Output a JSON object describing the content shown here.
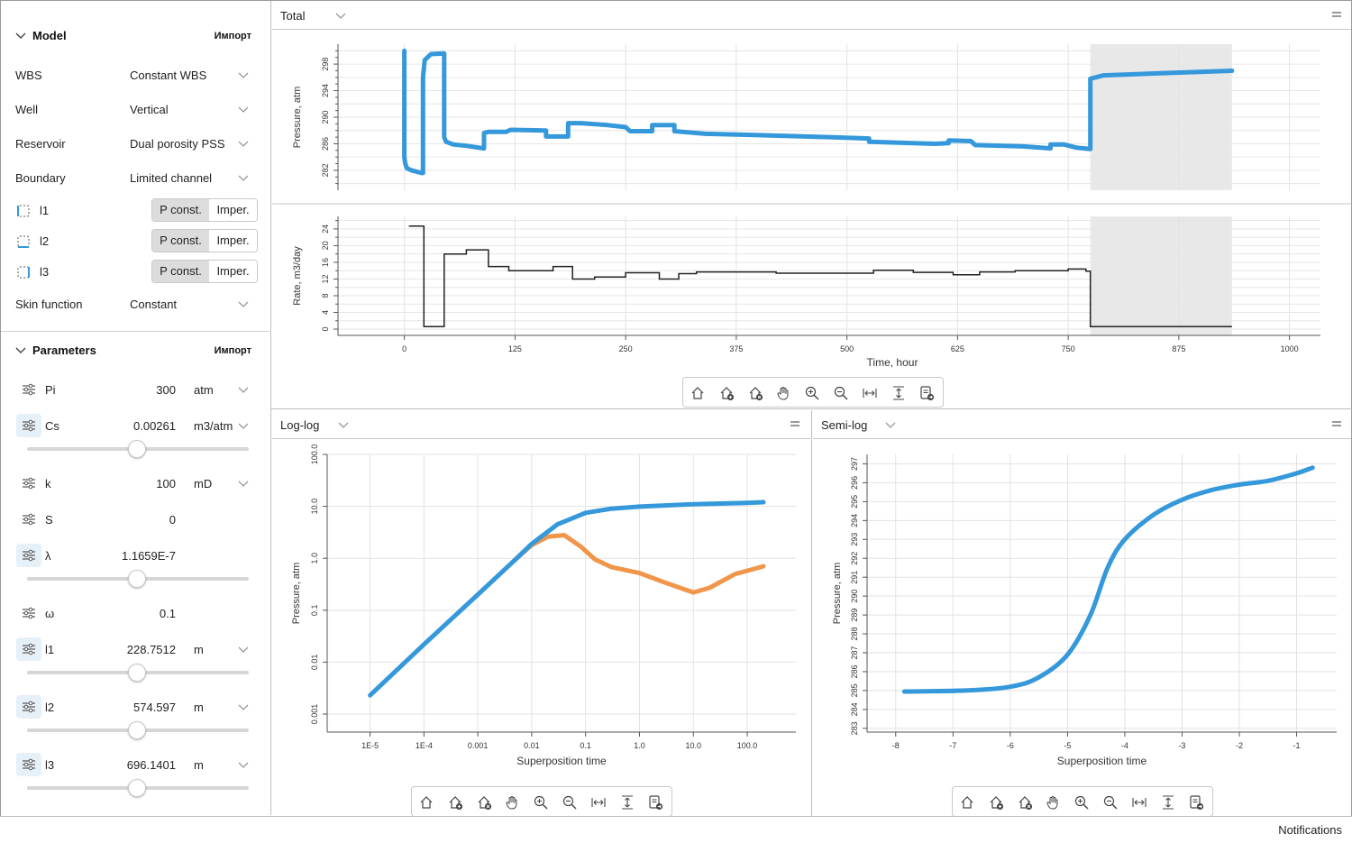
{
  "model": {
    "title": "Model",
    "import_label": "Импорт",
    "rows": [
      {
        "label": "WBS",
        "value": "Constant WBS"
      },
      {
        "label": "Well",
        "value": "Vertical"
      },
      {
        "label": "Reservoir",
        "value": "Dual porosity PSS"
      },
      {
        "label": "Boundary",
        "value": "Limited channel"
      }
    ],
    "boundaries": [
      {
        "label": "l1",
        "opt_a": "P const.",
        "opt_b": "Imper.",
        "selected": "P const."
      },
      {
        "label": "l2",
        "opt_a": "P const.",
        "opt_b": "Imper.",
        "selected": "P const."
      },
      {
        "label": "l3",
        "opt_a": "P const.",
        "opt_b": "Imper.",
        "selected": "P const."
      }
    ],
    "skin": {
      "label": "Skin function",
      "value": "Constant"
    }
  },
  "parameters": {
    "title": "Parameters",
    "import_label": "Импорт",
    "items": [
      {
        "label": "Pi",
        "value": "300",
        "unit": "atm",
        "dropdown": true,
        "slider": null
      },
      {
        "label": "Cs",
        "value": "0.00261",
        "unit": "m3/atm",
        "dropdown": true,
        "slider": 0.5
      },
      {
        "label": "k",
        "value": "100",
        "unit": "mD",
        "dropdown": true,
        "slider": null
      },
      {
        "label": "S",
        "value": "0",
        "unit": "",
        "dropdown": false,
        "slider": null
      },
      {
        "label": "λ",
        "value": "1.1659E-7",
        "unit": "",
        "dropdown": false,
        "slider": 0.5
      },
      {
        "label": "ω",
        "value": "0.1",
        "unit": "",
        "dropdown": false,
        "slider": null
      },
      {
        "label": "l1",
        "value": "228.7512",
        "unit": "m",
        "dropdown": true,
        "slider": 0.5
      },
      {
        "label": "l2",
        "value": "574.597",
        "unit": "m",
        "dropdown": true,
        "slider": 0.5
      },
      {
        "label": "l3",
        "value": "696.1401",
        "unit": "m",
        "dropdown": true,
        "slider": 0.5
      }
    ]
  },
  "panels": {
    "total": {
      "title": "Total"
    },
    "loglog": {
      "title": "Log-log"
    },
    "semilog": {
      "title": "Semi-log"
    }
  },
  "toolbar_icons": [
    "home-icon",
    "add-home-icon",
    "remove-home-icon",
    "pan-icon",
    "zoom-in-icon",
    "zoom-out-icon",
    "fit-horizontal-icon",
    "fit-vertical-icon",
    "export-icon"
  ],
  "status": {
    "notifications": "Notifications"
  },
  "colors": {
    "accent": "#3498db",
    "derivative": "#f0964a",
    "rate": "#222222",
    "shade": "#e8e8e8"
  },
  "chart_data": [
    {
      "id": "pressure",
      "type": "line",
      "ylabel": "Pressure, atm",
      "xlim": [
        -75,
        1035
      ],
      "ylim": [
        279,
        301
      ],
      "yticks": [
        282,
        286,
        290,
        294,
        298
      ],
      "shaded_range": [
        775,
        935
      ],
      "series": [
        {
          "values": [
            [
              0,
              300
            ],
            [
              0,
              284
            ],
            [
              1,
              283
            ],
            [
              3,
              282.3
            ],
            [
              8,
              282
            ],
            [
              20,
              281.6
            ],
            [
              21,
              281.6
            ],
            [
              21,
              296
            ],
            [
              23,
              298.6
            ],
            [
              30,
              299.5
            ],
            [
              45,
              299.6
            ],
            [
              45,
              287
            ],
            [
              47,
              286.3
            ],
            [
              55,
              285.9
            ],
            [
              70,
              285.7
            ],
            [
              90,
              285.3
            ],
            [
              90,
              287.6
            ],
            [
              95,
              287.8
            ],
            [
              115,
              287.8
            ],
            [
              120,
              288.1
            ],
            [
              160,
              288
            ],
            [
              160,
              287.1
            ],
            [
              185,
              287.1
            ],
            [
              185,
              289.1
            ],
            [
              200,
              289.1
            ],
            [
              230,
              288.8
            ],
            [
              250,
              288.5
            ],
            [
              255,
              287.9
            ],
            [
              280,
              287.9
            ],
            [
              280,
              288.8
            ],
            [
              305,
              288.8
            ],
            [
              305,
              287.9
            ],
            [
              340,
              287.5
            ],
            [
              400,
              287.3
            ],
            [
              480,
              287.0
            ],
            [
              525,
              286.8
            ],
            [
              525,
              286.3
            ],
            [
              600,
              286.0
            ],
            [
              615,
              286.1
            ],
            [
              615,
              286.5
            ],
            [
              640,
              286.4
            ],
            [
              645,
              285.8
            ],
            [
              700,
              285.6
            ],
            [
              720,
              285.4
            ],
            [
              730,
              285.3
            ],
            [
              730,
              285.9
            ],
            [
              745,
              285.9
            ],
            [
              760,
              285.4
            ],
            [
              775,
              285.2
            ],
            [
              775,
              295.8
            ],
            [
              790,
              296.3
            ],
            [
              850,
              296.6
            ],
            [
              935,
              297
            ]
          ]
        }
      ]
    },
    {
      "id": "rate",
      "type": "line",
      "xlabel": "Time, hour",
      "ylabel": "Rate, m3/day",
      "xlim": [
        -75,
        1035
      ],
      "ylim": [
        -1.5,
        27
      ],
      "xticks": [
        0,
        125,
        250,
        375,
        500,
        625,
        750,
        875,
        1000
      ],
      "yticks": [
        0,
        4,
        8,
        12,
        16,
        20,
        24
      ],
      "shaded_range": [
        775,
        935
      ],
      "series": [
        {
          "values": [
            [
              5,
              24.7
            ],
            [
              22,
              24.7
            ],
            [
              22,
              0.6
            ],
            [
              45,
              0.6
            ],
            [
              45,
              18
            ],
            [
              70,
              18
            ],
            [
              70,
              19
            ],
            [
              95,
              19
            ],
            [
              95,
              15
            ],
            [
              118,
              15
            ],
            [
              118,
              14
            ],
            [
              168,
              14
            ],
            [
              168,
              15
            ],
            [
              190,
              15
            ],
            [
              190,
              12
            ],
            [
              215,
              12
            ],
            [
              215,
              12.5
            ],
            [
              250,
              12.5
            ],
            [
              250,
              13.5
            ],
            [
              288,
              13.5
            ],
            [
              288,
              12
            ],
            [
              310,
              12
            ],
            [
              310,
              13.3
            ],
            [
              330,
              13.3
            ],
            [
              330,
              13.7
            ],
            [
              420,
              13.7
            ],
            [
              420,
              13.4
            ],
            [
              530,
              13.4
            ],
            [
              530,
              14.1
            ],
            [
              575,
              14.1
            ],
            [
              575,
              13.6
            ],
            [
              620,
              13.6
            ],
            [
              620,
              13
            ],
            [
              650,
              13
            ],
            [
              650,
              13.7
            ],
            [
              690,
              13.7
            ],
            [
              690,
              14
            ],
            [
              750,
              14
            ],
            [
              750,
              14.4
            ],
            [
              770,
              14.4
            ],
            [
              770,
              13.9
            ],
            [
              775,
              13.9
            ],
            [
              775,
              0.6
            ],
            [
              935,
              0.6
            ]
          ]
        }
      ]
    },
    {
      "id": "loglog",
      "type": "line",
      "xlabel": "Superposition time",
      "ylabel": "Pressure, atm",
      "xscale": "log",
      "yscale": "log",
      "xlim": [
        1.6e-06,
        800
      ],
      "ylim": [
        0.00045,
        100
      ],
      "xticks": [
        "1E-5",
        "1E-4",
        "0.001",
        "0.01",
        "0.1",
        "1.0",
        "10.0",
        "100.0"
      ],
      "yticks": [
        "0.001",
        "0.01",
        "0.1",
        "1.0",
        "10.0",
        "100.0"
      ],
      "series": [
        {
          "values": [
            [
              1e-05,
              0.0023
            ],
            [
              0.0001,
              0.022
            ],
            [
              0.001,
              0.2
            ],
            [
              0.005,
              0.95
            ],
            [
              0.01,
              1.9
            ],
            [
              0.03,
              4.5
            ],
            [
              0.1,
              7.5
            ],
            [
              0.3,
              9
            ],
            [
              1,
              9.9
            ],
            [
              10,
              11
            ],
            [
              100,
              11.7
            ],
            [
              200,
              12
            ]
          ]
        },
        {
          "values": [
            [
              0.005,
              0.95
            ],
            [
              0.01,
              1.8
            ],
            [
              0.02,
              2.6
            ],
            [
              0.04,
              2.8
            ],
            [
              0.08,
              1.7
            ],
            [
              0.15,
              0.95
            ],
            [
              0.3,
              0.68
            ],
            [
              1,
              0.52
            ],
            [
              3,
              0.34
            ],
            [
              10,
              0.22
            ],
            [
              20,
              0.27
            ],
            [
              60,
              0.5
            ],
            [
              200,
              0.7
            ]
          ]
        }
      ]
    },
    {
      "id": "semilog",
      "type": "line",
      "xlabel": "Superposition time",
      "ylabel": "Pressure, atm",
      "xlim": [
        -8.5,
        -0.3
      ],
      "ylim": [
        282.8,
        297.5
      ],
      "xticks": [
        -8,
        -7,
        -6,
        -5,
        -4,
        -3,
        -2,
        -1
      ],
      "yticks": [
        283,
        284,
        285,
        286,
        287,
        288,
        289,
        290,
        291,
        292,
        293,
        294,
        295,
        296,
        297
      ],
      "series": [
        {
          "values": [
            [
              -7.85,
              284.95
            ],
            [
              -6.8,
              285
            ],
            [
              -6,
              285.2
            ],
            [
              -5.5,
              285.7
            ],
            [
              -5,
              286.9
            ],
            [
              -4.6,
              289
            ],
            [
              -4.3,
              291.5
            ],
            [
              -4,
              293
            ],
            [
              -3.5,
              294.3
            ],
            [
              -3,
              295.1
            ],
            [
              -2.5,
              295.6
            ],
            [
              -2,
              295.9
            ],
            [
              -1.5,
              296.1
            ],
            [
              -1,
              296.5
            ],
            [
              -0.72,
              296.8
            ]
          ]
        }
      ]
    }
  ]
}
